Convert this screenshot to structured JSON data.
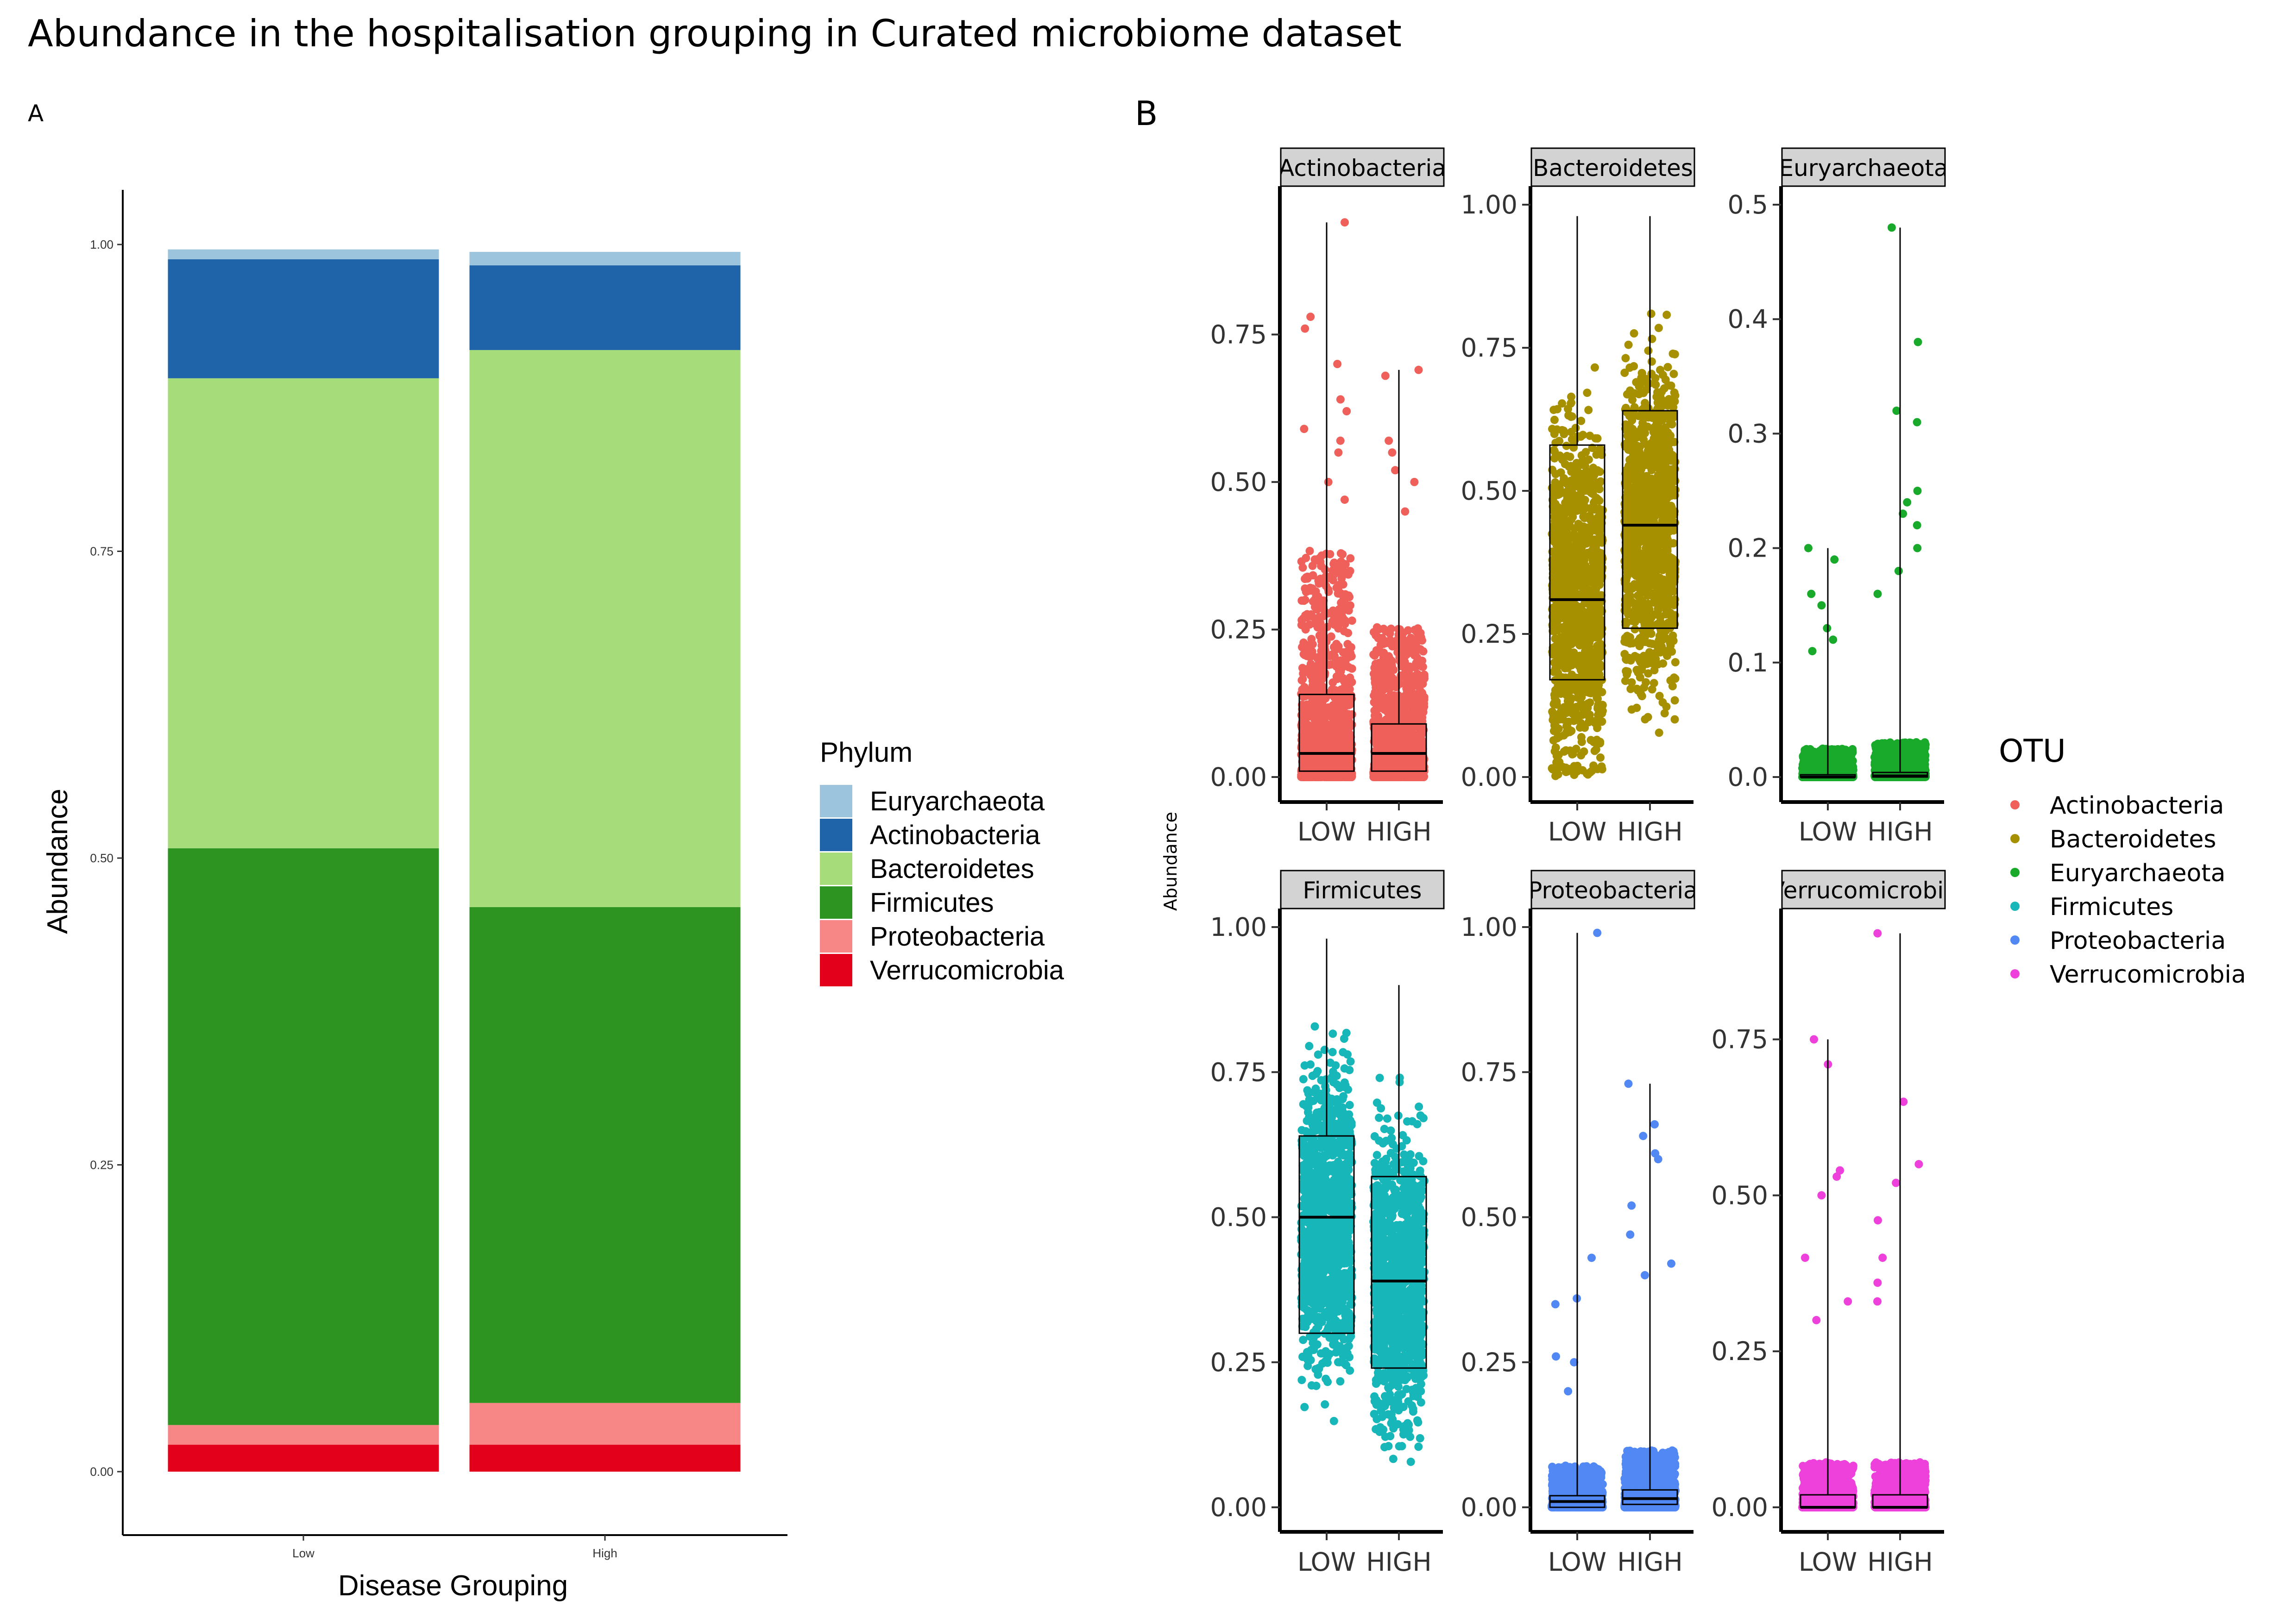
{
  "title": "Abundance in the hospitalisation grouping in Curated microbiome dataset",
  "panel_a": {
    "label": "A",
    "xlabel": "Disease Grouping",
    "ylabel": "Abundance",
    "yticks": [
      "0.00",
      "0.25",
      "0.50",
      "0.75",
      "1.00"
    ],
    "legend_title": "Phylum"
  },
  "panel_b": {
    "label": "B",
    "ylabel": "Abundance",
    "legend_title": "OTU",
    "x_categories": [
      "LOW",
      "HIGH"
    ]
  },
  "chart_data": [
    {
      "type": "bar",
      "stacked": true,
      "title": "Abundance in the hospitalisation grouping in Curated microbiome dataset",
      "xlabel": "Disease Grouping",
      "ylabel": "Abundance",
      "ylim": [
        0,
        1.05
      ],
      "grid": false,
      "legend_position": "right",
      "categories": [
        "Low",
        "High"
      ],
      "series": [
        {
          "name": "Verrucomicrobia",
          "color": "#e3001b",
          "values": [
            0.022,
            0.022
          ]
        },
        {
          "name": "Proteobacteria",
          "color": "#f78787",
          "values": [
            0.016,
            0.034
          ]
        },
        {
          "name": "Firmicutes",
          "color": "#2e9421",
          "values": [
            0.47,
            0.404
          ]
        },
        {
          "name": "Bacteroidetes",
          "color": "#a6dc7a",
          "values": [
            0.383,
            0.454
          ]
        },
        {
          "name": "Actinobacteria",
          "color": "#1f63a8",
          "values": [
            0.097,
            0.069
          ]
        },
        {
          "name": "Euryarchaeota",
          "color": "#9cc4dc",
          "values": [
            0.008,
            0.011
          ]
        }
      ],
      "legend_order": [
        "Euryarchaeota",
        "Actinobacteria",
        "Bacteroidetes",
        "Firmicutes",
        "Proteobacteria",
        "Verrucomicrobia"
      ]
    },
    {
      "type": "scatter",
      "subtype": "jitter_boxplot_facets",
      "ylabel": "Abundance",
      "categories": [
        "LOW",
        "HIGH"
      ],
      "legend_position": "right",
      "facets": [
        {
          "name": "Actinobacteria",
          "color": "#f0605b",
          "ylim": [
            0,
            0.97
          ],
          "yticks": [
            0,
            0.25,
            0.5,
            0.75
          ],
          "box": [
            {
              "q1": 0.01,
              "median": 0.04,
              "q3": 0.14,
              "max": 0.94
            },
            {
              "q1": 0.01,
              "median": 0.04,
              "q3": 0.09,
              "max": 0.69
            }
          ],
          "outliers": [
            [
              0.94,
              0.78,
              0.76,
              0.7,
              0.64,
              0.62,
              0.59,
              0.57,
              0.55,
              0.5,
              0.47
            ],
            [
              0.69,
              0.68,
              0.57,
              0.55,
              0.52,
              0.5,
              0.45
            ]
          ]
        },
        {
          "name": "Bacteroidetes",
          "color": "#a79000",
          "ylim": [
            0,
            1.0
          ],
          "yticks": [
            0,
            0.25,
            0.5,
            0.75,
            1.0
          ],
          "box": [
            {
              "q1": 0.17,
              "median": 0.31,
              "q3": 0.58,
              "max": 0.98
            },
            {
              "q1": 0.26,
              "median": 0.44,
              "q3": 0.64,
              "max": 0.98
            }
          ],
          "outliers": [
            [],
            []
          ]
        },
        {
          "name": "Euryarchaeota",
          "color": "#19aa2c",
          "ylim": [
            0,
            0.5
          ],
          "yticks": [
            0,
            0.1,
            0.2,
            0.3,
            0.4,
            0.5
          ],
          "box": [
            {
              "q1": 0.0,
              "median": 0.0,
              "q3": 0.002,
              "max": 0.2
            },
            {
              "q1": 0.0,
              "median": 0.001,
              "q3": 0.004,
              "max": 0.48
            }
          ],
          "outliers": [
            [
              0.2,
              0.19,
              0.16,
              0.15,
              0.13,
              0.12,
              0.11
            ],
            [
              0.48,
              0.38,
              0.32,
              0.31,
              0.25,
              0.24,
              0.23,
              0.22,
              0.2,
              0.18,
              0.16
            ]
          ]
        },
        {
          "name": "Firmicutes",
          "color": "#17b6b9",
          "ylim": [
            0,
            1.0
          ],
          "yticks": [
            0,
            0.25,
            0.5,
            0.75,
            1.0
          ],
          "box": [
            {
              "q1": 0.3,
              "median": 0.5,
              "q3": 0.64,
              "max": 0.98
            },
            {
              "q1": 0.24,
              "median": 0.39,
              "q3": 0.57,
              "max": 0.9
            }
          ],
          "outliers": [
            [],
            []
          ]
        },
        {
          "name": "Proteobacteria",
          "color": "#5188f4",
          "ylim": [
            0,
            1.0
          ],
          "yticks": [
            0,
            0.25,
            0.5,
            0.75,
            1.0
          ],
          "box": [
            {
              "q1": 0.0,
              "median": 0.01,
              "q3": 0.02,
              "max": 0.99
            },
            {
              "q1": 0.005,
              "median": 0.015,
              "q3": 0.03,
              "max": 0.73
            }
          ],
          "outliers": [
            [
              0.99,
              0.43,
              0.36,
              0.35,
              0.26,
              0.25,
              0.2
            ],
            [
              0.73,
              0.66,
              0.64,
              0.61,
              0.6,
              0.52,
              0.47,
              0.42,
              0.4
            ]
          ]
        },
        {
          "name": "Verrucomicrobia",
          "color": "#ee41dc",
          "ylim": [
            0,
            0.93
          ],
          "yticks": [
            0,
            0.25,
            0.5,
            0.75
          ],
          "box": [
            {
              "q1": 0.0,
              "median": 0.0,
              "q3": 0.02,
              "max": 0.75
            },
            {
              "q1": 0.0,
              "median": 0.0,
              "q3": 0.02,
              "max": 0.92
            }
          ],
          "outliers": [
            [
              0.75,
              0.71,
              0.54,
              0.53,
              0.5,
              0.4,
              0.33,
              0.3
            ],
            [
              0.92,
              0.65,
              0.55,
              0.52,
              0.46,
              0.4,
              0.36,
              0.33
            ]
          ]
        }
      ]
    }
  ]
}
